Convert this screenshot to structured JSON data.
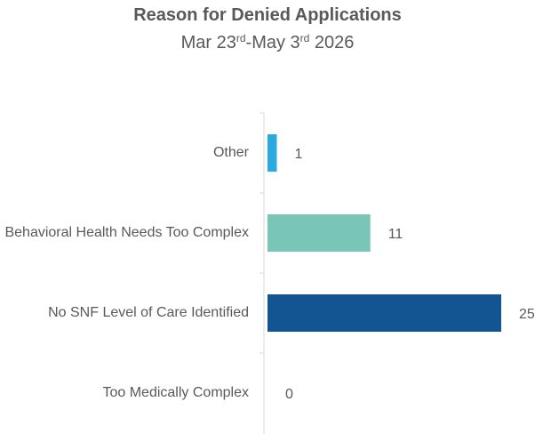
{
  "chart_data": {
    "type": "hbar",
    "title": "Reason for Denied Applications",
    "subtitle": "Mar 23rd-May 3rd 2026",
    "categories": [
      "Other",
      "Behavioral Health Needs Too Complex",
      "No SNF Level of Care Identified",
      "Too Medically Complex"
    ],
    "values": [
      1,
      11,
      25,
      0
    ],
    "colors": [
      "#29abe2",
      "#7ac6b6",
      "#135592",
      "#9e9e9e"
    ],
    "xlim": [
      0,
      25
    ]
  }
}
